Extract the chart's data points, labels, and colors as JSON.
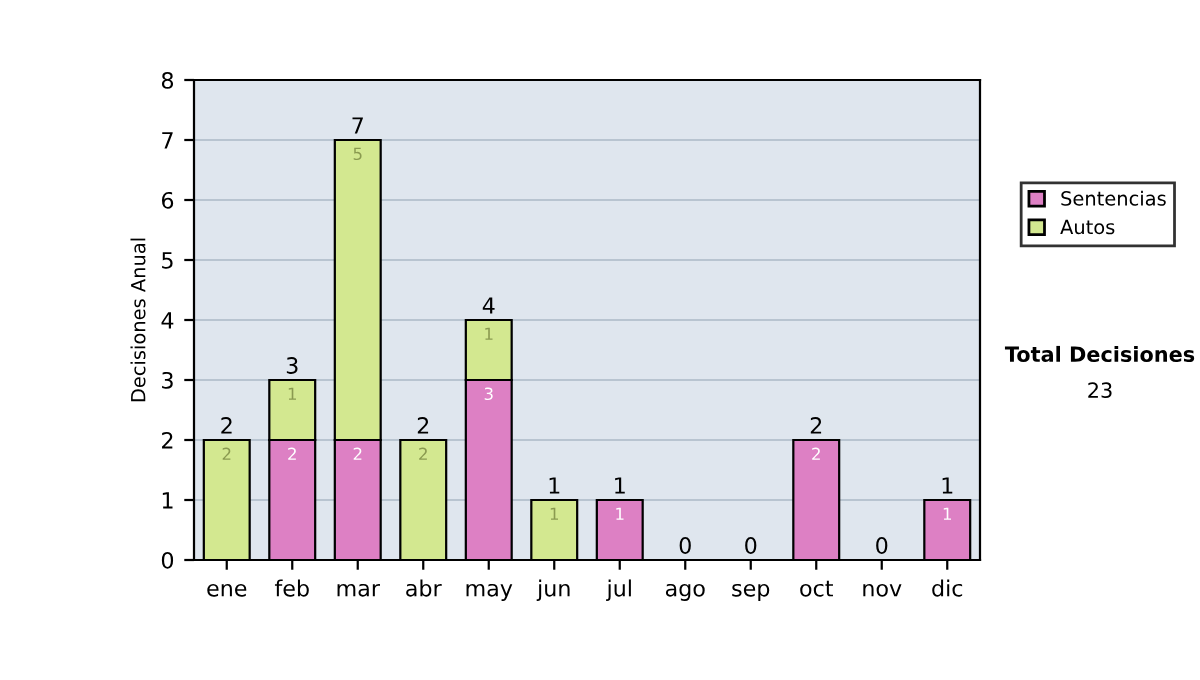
{
  "chart_data": {
    "type": "bar",
    "stacked": true,
    "ylabel": "Decisiones Anual",
    "categories": [
      "ene",
      "feb",
      "mar",
      "abr",
      "may",
      "jun",
      "jul",
      "ago",
      "sep",
      "oct",
      "nov",
      "dic"
    ],
    "series": [
      {
        "name": "Sentencias",
        "color": "#dd80c4",
        "values": [
          0,
          2,
          2,
          0,
          3,
          0,
          1,
          0,
          0,
          2,
          0,
          1
        ],
        "value_labels": [
          null,
          "2",
          "2",
          null,
          "3",
          null,
          "1",
          null,
          null,
          "2",
          null,
          "1"
        ]
      },
      {
        "name": "Autos",
        "color": "#d3e890",
        "values": [
          2,
          1,
          5,
          2,
          1,
          1,
          0,
          0,
          0,
          0,
          0,
          0
        ],
        "value_labels": [
          "2",
          "1",
          "5",
          "2",
          "1",
          "1",
          null,
          null,
          null,
          null,
          null,
          null
        ]
      }
    ],
    "totals": [
      "2",
      "3",
      "7",
      "2",
      "4",
      "1",
      "1",
      "0",
      "0",
      "2",
      "0",
      "1"
    ],
    "ylim": [
      0,
      8
    ],
    "yticks": [
      0,
      1,
      2,
      3,
      4,
      5,
      6,
      7,
      8
    ],
    "grid": "y",
    "legend": "right",
    "annotations": [
      "Total Decisiones",
      "23"
    ]
  }
}
